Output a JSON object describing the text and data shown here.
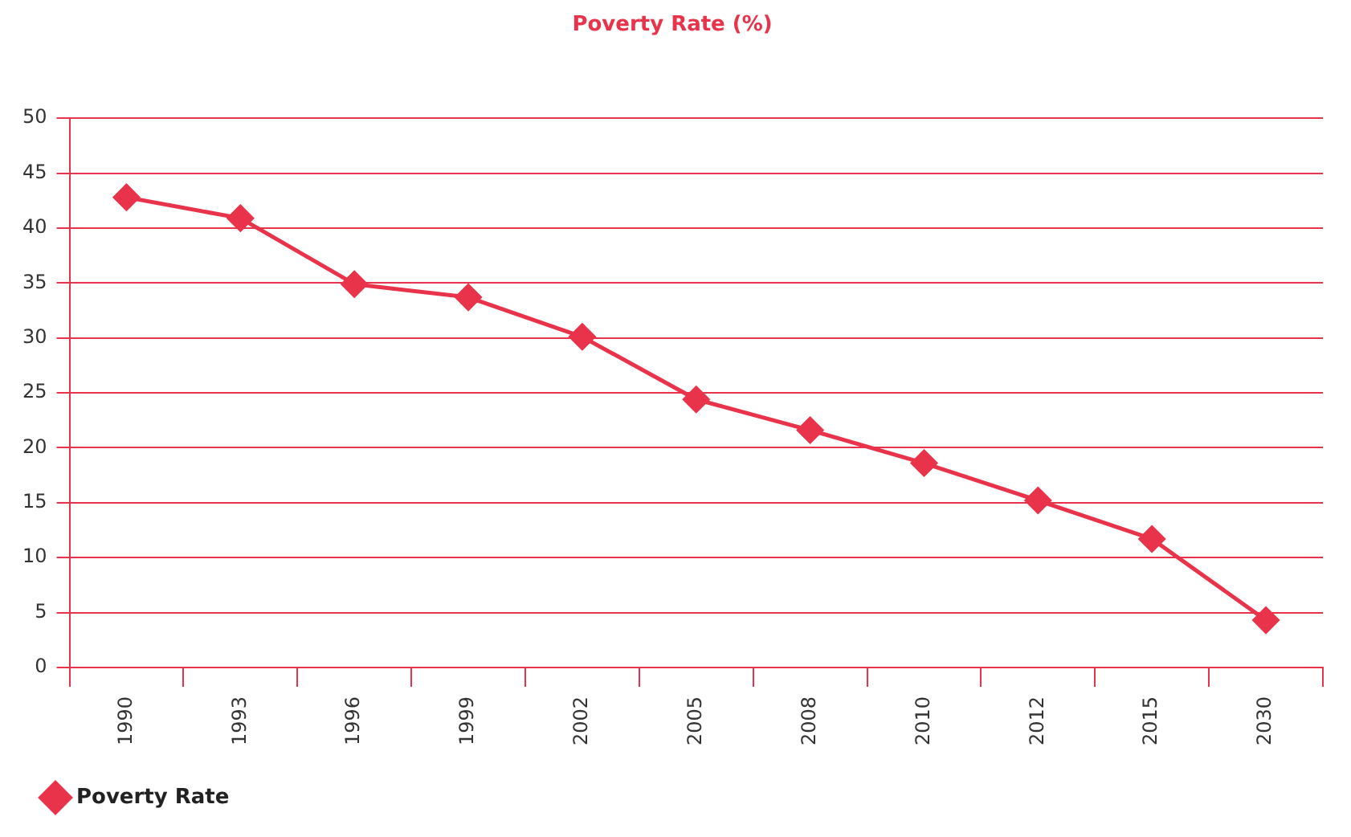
{
  "chart_data": {
    "type": "line",
    "title": "Poverty Rate (%)",
    "categories": [
      "1990",
      "1993",
      "1996",
      "1999",
      "2002",
      "2005",
      "2008",
      "2010",
      "2012",
      "2015",
      "2030"
    ],
    "series": [
      {
        "name": "Poverty Rate",
        "color": "#e8334a",
        "values": [
          42.8,
          40.9,
          34.9,
          33.7,
          30.1,
          24.4,
          21.6,
          18.6,
          15.2,
          11.7,
          4.3
        ]
      }
    ],
    "ylim": [
      0,
      50
    ],
    "yticks": [
      0,
      5,
      10,
      15,
      20,
      25,
      30,
      35,
      40,
      45,
      50
    ],
    "grid": "y",
    "legend": "bottom left",
    "marker": "diamond",
    "line_style": "solid"
  }
}
